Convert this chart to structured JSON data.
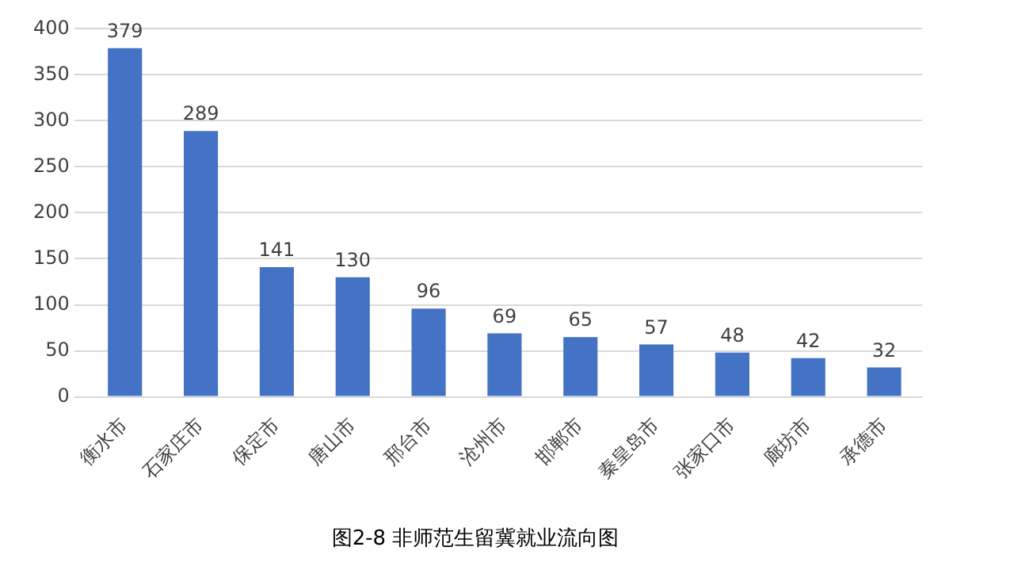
{
  "chart_data": {
    "type": "bar",
    "title": "图2-8 非师范生留冀就业流向图",
    "categories": [
      "衡水市",
      "石家庄市",
      "保定市",
      "唐山市",
      "邢台市",
      "沧州市",
      "邯郸市",
      "秦皇岛市",
      "张家口市",
      "廊坊市",
      "承德市"
    ],
    "values": [
      379,
      289,
      141,
      130,
      96,
      69,
      65,
      57,
      48,
      42,
      32
    ],
    "color": "#4472c4",
    "ylim": [
      0,
      400
    ],
    "yticks": [
      0,
      50,
      100,
      150,
      200,
      250,
      300,
      350,
      400
    ],
    "grid": "y",
    "data_labels": true
  }
}
